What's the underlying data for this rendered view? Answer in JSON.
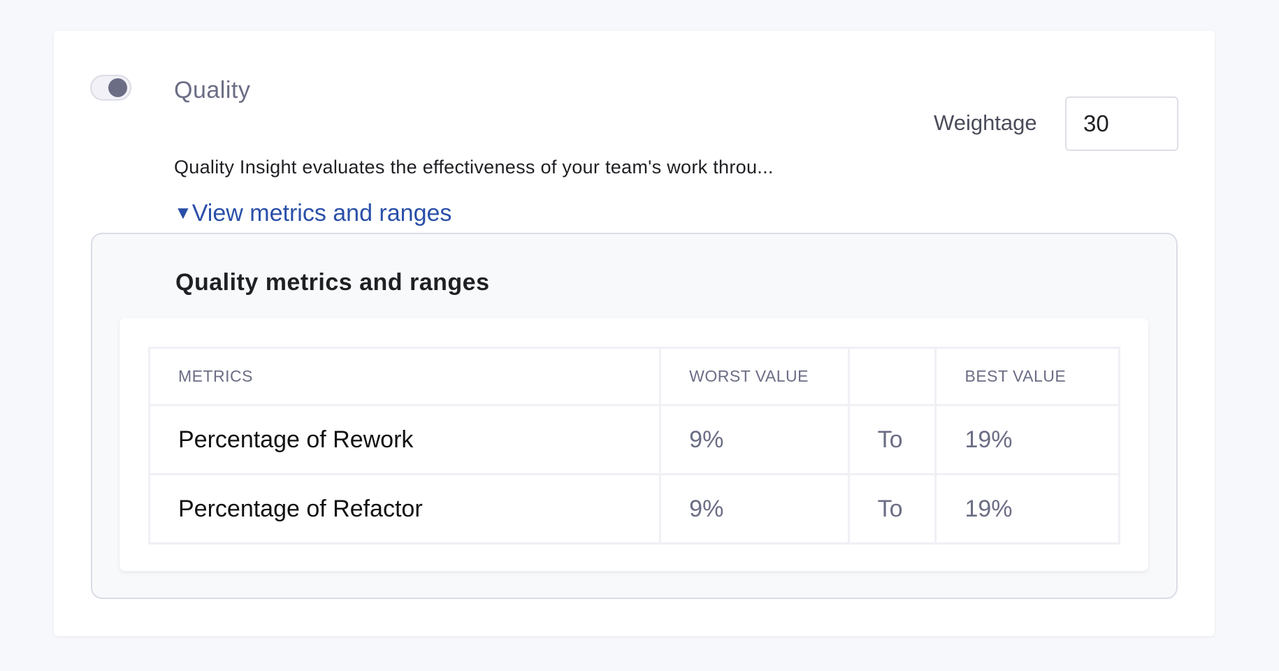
{
  "section": {
    "title": "Quality",
    "enabled": true,
    "description": "Quality Insight evaluates the effectiveness of your team's work throu...",
    "link_label": "View metrics and ranges",
    "weightage_label": "Weightage",
    "weightage_value": "30"
  },
  "panel": {
    "title": "Quality metrics and ranges",
    "headers": [
      "METRICS",
      "WORST VALUE",
      "",
      "BEST VALUE"
    ],
    "rows": [
      {
        "metric": "Percentage of Rework",
        "worst": "9%",
        "sep": "To",
        "best": "19%"
      },
      {
        "metric": "Percentage of Refactor",
        "worst": "9%",
        "sep": "To",
        "best": "19%"
      }
    ]
  }
}
